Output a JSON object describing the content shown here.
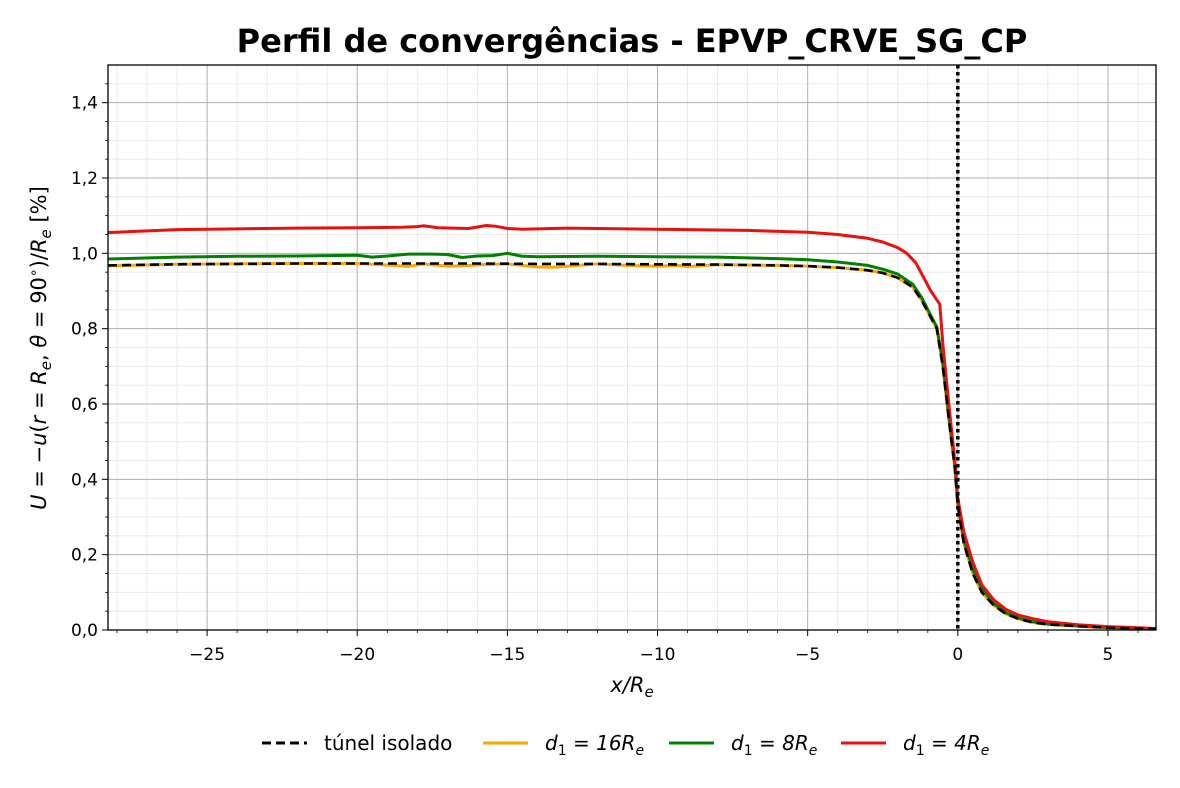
{
  "chart_data": {
    "type": "line",
    "title": "Perfil de convergências - EPVP_CRVE_SG_CP",
    "xlabel": "x/R_e",
    "ylabel": "U = −u(r = R_e, θ = 90°)/R_e [%]",
    "xlim": [
      -28.3,
      6.6
    ],
    "ylim": [
      0.0,
      1.5
    ],
    "xticks": [
      -25,
      -20,
      -15,
      -10,
      -5,
      0,
      5
    ],
    "xtick_labels": [
      "−25",
      "−20",
      "−15",
      "−10",
      "−5",
      "0",
      "5"
    ],
    "yticks": [
      0.0,
      0.2,
      0.4,
      0.6,
      0.8,
      1.0,
      1.2,
      1.4
    ],
    "ytick_labels": [
      "0,0",
      "0,2",
      "0,4",
      "0,6",
      "0,8",
      "1,0",
      "1,2",
      "1,4"
    ],
    "grid": true,
    "minor_grid": true,
    "legend_position": "below",
    "vertical_line": {
      "x": 0,
      "style": "dotted",
      "color": "#000000"
    },
    "series": [
      {
        "name": "túnel isolado",
        "color": "#000000",
        "style": "dashed",
        "x": [
          -28.3,
          -26,
          -24,
          -22,
          -20,
          -18,
          -16,
          -14,
          -12,
          -10,
          -8,
          -6,
          -5,
          -4,
          -3,
          -2.5,
          -2,
          -1.5,
          -1.2,
          -0.9,
          -0.7,
          -0.5,
          -0.3,
          -0.1,
          0,
          0.2,
          0.5,
          0.8,
          1.2,
          1.6,
          2,
          2.5,
          3,
          4,
          5,
          6.6
        ],
        "y": [
          0.968,
          0.971,
          0.972,
          0.973,
          0.973,
          0.973,
          0.973,
          0.972,
          0.972,
          0.971,
          0.97,
          0.968,
          0.966,
          0.962,
          0.955,
          0.948,
          0.935,
          0.91,
          0.875,
          0.83,
          0.8,
          0.7,
          0.56,
          0.43,
          0.33,
          0.23,
          0.15,
          0.1,
          0.065,
          0.043,
          0.03,
          0.02,
          0.015,
          0.01,
          0.006,
          0.003
        ]
      },
      {
        "name": "d1 = 16Re",
        "legend_math": {
          "base": "d",
          "sub": "1",
          "rhs": " = 16R",
          "rhs_sub": "e"
        },
        "color": "#FFA500",
        "style": "solid",
        "x": [
          -28.3,
          -26,
          -24,
          -22,
          -20,
          -18.8,
          -18.3,
          -17.8,
          -17,
          -16.5,
          -15.8,
          -15,
          -14,
          -13.5,
          -13,
          -12,
          -11,
          -10,
          -9.3,
          -9,
          -8,
          -6,
          -5,
          -4,
          -3,
          -2.5,
          -2,
          -1.5,
          -1.2,
          -0.9,
          -0.7,
          -0.5,
          -0.3,
          -0.1,
          0,
          0.2,
          0.5,
          0.8,
          1.2,
          1.6,
          2,
          2.5,
          3,
          4,
          5,
          6.6
        ],
        "y": [
          0.967,
          0.971,
          0.972,
          0.973,
          0.973,
          0.968,
          0.965,
          0.972,
          0.966,
          0.967,
          0.97,
          0.972,
          0.964,
          0.963,
          0.966,
          0.972,
          0.968,
          0.966,
          0.968,
          0.965,
          0.97,
          0.968,
          0.966,
          0.962,
          0.955,
          0.948,
          0.935,
          0.91,
          0.875,
          0.83,
          0.8,
          0.7,
          0.56,
          0.43,
          0.33,
          0.23,
          0.15,
          0.1,
          0.065,
          0.043,
          0.03,
          0.02,
          0.015,
          0.01,
          0.006,
          0.003
        ]
      },
      {
        "name": "d1 = 8Re",
        "legend_math": {
          "base": "d",
          "sub": "1",
          "rhs": " = 8R",
          "rhs_sub": "e"
        },
        "color": "#008000",
        "style": "solid",
        "x": [
          -28.3,
          -26,
          -24,
          -22,
          -20,
          -19.5,
          -19,
          -18.3,
          -17.5,
          -17,
          -16.5,
          -16,
          -15.5,
          -15,
          -14.5,
          -14,
          -12,
          -10,
          -8,
          -6,
          -5,
          -4,
          -3,
          -2.5,
          -2,
          -1.5,
          -1.2,
          -0.9,
          -0.7,
          -0.5,
          -0.3,
          -0.1,
          0,
          0.2,
          0.5,
          0.8,
          1.2,
          1.6,
          2,
          2.5,
          3,
          4,
          5,
          6.6
        ],
        "y": [
          0.985,
          0.99,
          0.992,
          0.993,
          0.995,
          0.99,
          0.993,
          0.998,
          0.998,
          0.997,
          0.989,
          0.993,
          0.994,
          1.0,
          0.992,
          0.991,
          0.992,
          0.991,
          0.99,
          0.986,
          0.983,
          0.977,
          0.968,
          0.958,
          0.945,
          0.918,
          0.882,
          0.835,
          0.805,
          0.71,
          0.57,
          0.44,
          0.34,
          0.24,
          0.16,
          0.11,
          0.07,
          0.046,
          0.032,
          0.022,
          0.016,
          0.011,
          0.007,
          0.003
        ]
      },
      {
        "name": "d1 = 4Re",
        "legend_math": {
          "base": "d",
          "sub": "1",
          "rhs": " = 4R",
          "rhs_sub": "e"
        },
        "color": "#E8110F",
        "style": "solid",
        "x": [
          -28.3,
          -26,
          -24,
          -22,
          -20,
          -18.5,
          -18,
          -17.8,
          -17.3,
          -16.3,
          -16,
          -15.7,
          -15.4,
          -15,
          -14.5,
          -13,
          -11,
          -9,
          -7,
          -5,
          -4,
          -3,
          -2.5,
          -2,
          -1.7,
          -1.4,
          -1.2,
          -0.9,
          -0.6,
          -0.5,
          -0.3,
          -0.1,
          0,
          0.2,
          0.5,
          0.8,
          1.2,
          1.6,
          2,
          2.5,
          3,
          4,
          5,
          6.6
        ],
        "y": [
          1.055,
          1.063,
          1.065,
          1.067,
          1.068,
          1.069,
          1.071,
          1.073,
          1.068,
          1.066,
          1.07,
          1.074,
          1.072,
          1.066,
          1.064,
          1.067,
          1.065,
          1.063,
          1.061,
          1.056,
          1.05,
          1.04,
          1.03,
          1.015,
          1.0,
          0.975,
          0.945,
          0.9,
          0.865,
          0.76,
          0.6,
          0.45,
          0.35,
          0.26,
          0.18,
          0.12,
          0.08,
          0.055,
          0.04,
          0.03,
          0.022,
          0.014,
          0.009,
          0.004
        ]
      }
    ]
  }
}
